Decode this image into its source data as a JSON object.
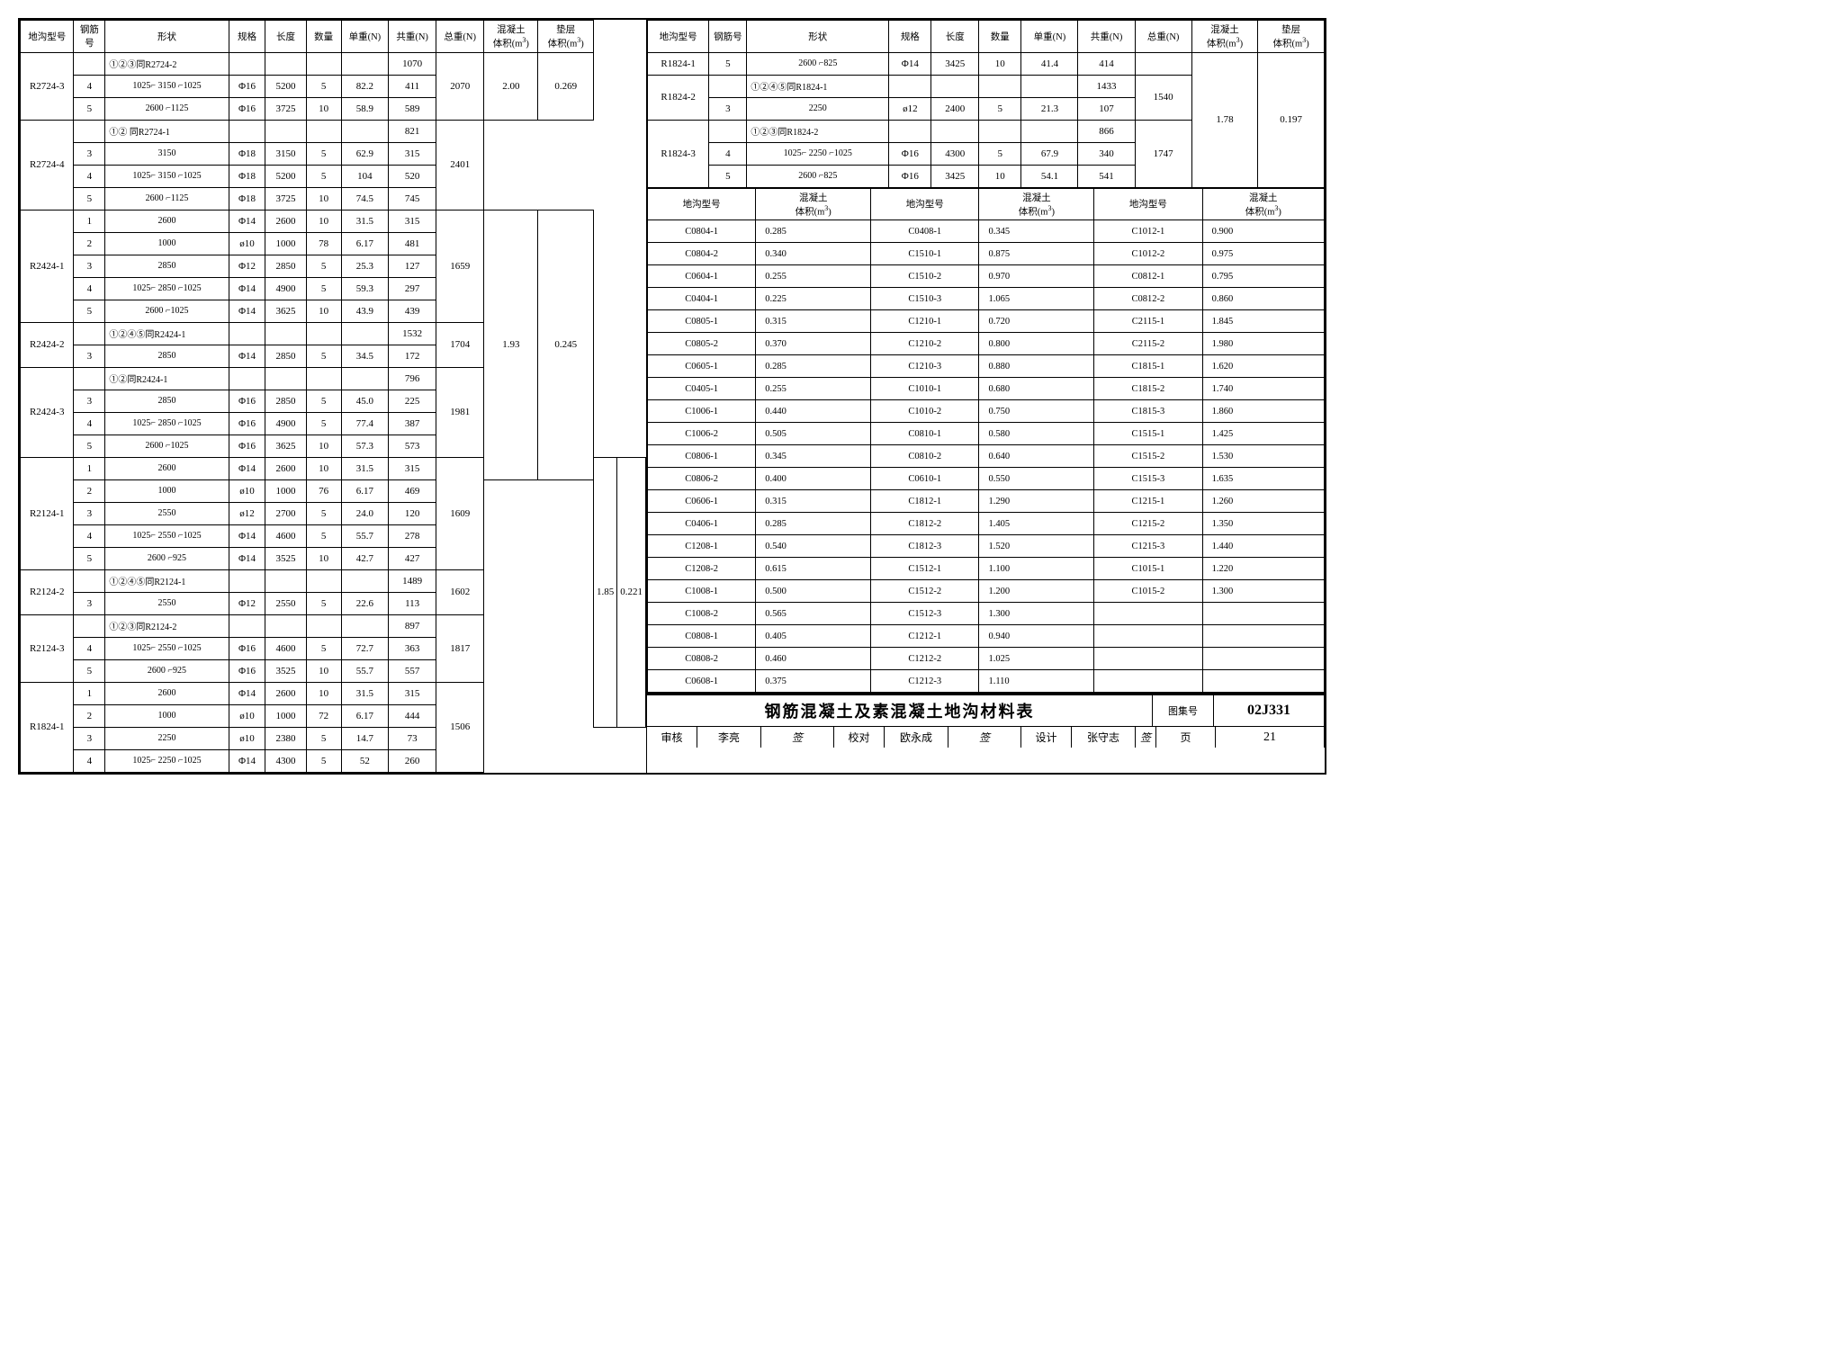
{
  "headers_main": [
    "地沟型号",
    "钢筋号",
    "形状",
    "规格",
    "长度",
    "数量",
    "单重(N)",
    "共重(N)",
    "总重(N)",
    "混凝土 体积(m³)",
    "垫层 体积(m³)"
  ],
  "left_groups": [
    {
      "model": "R2724-3",
      "total": "2070",
      "conc": "2.00",
      "base": "0.269",
      "span": 3,
      "rows": [
        {
          "bar": "",
          "shape": "①②③同R2724-2",
          "spec": "",
          "len": "",
          "qty": "",
          "uw": "",
          "cw": "1070"
        },
        {
          "bar": "4",
          "shape": "1025⌐ 3150 ⌐1025",
          "spec": "Φ16",
          "len": "5200",
          "qty": "5",
          "uw": "82.2",
          "cw": "411"
        },
        {
          "bar": "5",
          "shape": "2600 ⌐1125",
          "spec": "Φ16",
          "len": "3725",
          "qty": "10",
          "uw": "58.9",
          "cw": "589"
        }
      ]
    },
    {
      "model": "R2724-4",
      "total": "2401",
      "rows": [
        {
          "bar": "",
          "shape": "①② 同R2724-1",
          "spec": "",
          "len": "",
          "qty": "",
          "uw": "",
          "cw": "821"
        },
        {
          "bar": "3",
          "shape": "3150",
          "spec": "Φ18",
          "len": "3150",
          "qty": "5",
          "uw": "62.9",
          "cw": "315"
        },
        {
          "bar": "4",
          "shape": "1025⌐ 3150 ⌐1025",
          "spec": "Φ18",
          "len": "5200",
          "qty": "5",
          "uw": "104",
          "cw": "520"
        },
        {
          "bar": "5",
          "shape": "2600 ⌐1125",
          "spec": "Φ18",
          "len": "3725",
          "qty": "10",
          "uw": "74.5",
          "cw": "745"
        }
      ]
    },
    {
      "model": "R2424-1",
      "total": "1659",
      "conc": "1.93",
      "base": "0.245",
      "span": 12,
      "rows": [
        {
          "bar": "1",
          "shape": "2600",
          "spec": "Φ14",
          "len": "2600",
          "qty": "10",
          "uw": "31.5",
          "cw": "315"
        },
        {
          "bar": "2",
          "shape": "1000",
          "spec": "ø10",
          "len": "1000",
          "qty": "78",
          "uw": "6.17",
          "cw": "481"
        },
        {
          "bar": "3",
          "shape": "2850",
          "spec": "Φ12",
          "len": "2850",
          "qty": "5",
          "uw": "25.3",
          "cw": "127"
        },
        {
          "bar": "4",
          "shape": "1025⌐ 2850 ⌐1025",
          "spec": "Φ14",
          "len": "4900",
          "qty": "5",
          "uw": "59.3",
          "cw": "297"
        },
        {
          "bar": "5",
          "shape": "2600 ⌐1025",
          "spec": "Φ14",
          "len": "3625",
          "qty": "10",
          "uw": "43.9",
          "cw": "439"
        }
      ]
    },
    {
      "model": "R2424-2",
      "total": "1704",
      "rows": [
        {
          "bar": "",
          "shape": "①②④⑤同R2424-1",
          "spec": "",
          "len": "",
          "qty": "",
          "uw": "",
          "cw": "1532"
        },
        {
          "bar": "3",
          "shape": "2850",
          "spec": "Φ14",
          "len": "2850",
          "qty": "5",
          "uw": "34.5",
          "cw": "172"
        }
      ]
    },
    {
      "model": "R2424-3",
      "total": "1981",
      "rows": [
        {
          "bar": "",
          "shape": "①②同R2424-1",
          "spec": "",
          "len": "",
          "qty": "",
          "uw": "",
          "cw": "796"
        },
        {
          "bar": "3",
          "shape": "2850",
          "spec": "Φ16",
          "len": "2850",
          "qty": "5",
          "uw": "45.0",
          "cw": "225"
        },
        {
          "bar": "4",
          "shape": "1025⌐ 2850 ⌐1025",
          "spec": "Φ16",
          "len": "4900",
          "qty": "5",
          "uw": "77.4",
          "cw": "387"
        },
        {
          "bar": "5",
          "shape": "2600 ⌐1025",
          "spec": "Φ16",
          "len": "3625",
          "qty": "10",
          "uw": "57.3",
          "cw": "573"
        }
      ]
    },
    {
      "model": "R2124-1",
      "total": "1609",
      "conc": "1.85",
      "base": "0.221",
      "span": 12,
      "rows": [
        {
          "bar": "1",
          "shape": "2600",
          "spec": "Φ14",
          "len": "2600",
          "qty": "10",
          "uw": "31.5",
          "cw": "315"
        },
        {
          "bar": "2",
          "shape": "1000",
          "spec": "ø10",
          "len": "1000",
          "qty": "76",
          "uw": "6.17",
          "cw": "469"
        },
        {
          "bar": "3",
          "shape": "2550",
          "spec": "ø12",
          "len": "2700",
          "qty": "5",
          "uw": "24.0",
          "cw": "120"
        },
        {
          "bar": "4",
          "shape": "1025⌐ 2550 ⌐1025",
          "spec": "Φ14",
          "len": "4600",
          "qty": "5",
          "uw": "55.7",
          "cw": "278"
        },
        {
          "bar": "5",
          "shape": "2600 ⌐925",
          "spec": "Φ14",
          "len": "3525",
          "qty": "10",
          "uw": "42.7",
          "cw": "427"
        }
      ]
    },
    {
      "model": "R2124-2",
      "total": "1602",
      "rows": [
        {
          "bar": "",
          "shape": "①②④⑤同R2124-1",
          "spec": "",
          "len": "",
          "qty": "",
          "uw": "",
          "cw": "1489"
        },
        {
          "bar": "3",
          "shape": "2550",
          "spec": "Φ12",
          "len": "2550",
          "qty": "5",
          "uw": "22.6",
          "cw": "113"
        }
      ]
    },
    {
      "model": "R2124-3",
      "total": "1817",
      "rows": [
        {
          "bar": "",
          "shape": "①②③同R2124-2",
          "spec": "",
          "len": "",
          "qty": "",
          "uw": "",
          "cw": "897"
        },
        {
          "bar": "4",
          "shape": "1025⌐ 2550 ⌐1025",
          "spec": "Φ16",
          "len": "4600",
          "qty": "5",
          "uw": "72.7",
          "cw": "363"
        },
        {
          "bar": "5",
          "shape": "2600 ⌐925",
          "spec": "Φ16",
          "len": "3525",
          "qty": "10",
          "uw": "55.7",
          "cw": "557"
        }
      ]
    },
    {
      "model": "R1824-1",
      "total": "1506",
      "rows": [
        {
          "bar": "1",
          "shape": "2600",
          "spec": "Φ14",
          "len": "2600",
          "qty": "10",
          "uw": "31.5",
          "cw": "315"
        },
        {
          "bar": "2",
          "shape": "1000",
          "spec": "ø10",
          "len": "1000",
          "qty": "72",
          "uw": "6.17",
          "cw": "444"
        },
        {
          "bar": "3",
          "shape": "2250",
          "spec": "ø10",
          "len": "2380",
          "qty": "5",
          "uw": "14.7",
          "cw": "73"
        },
        {
          "bar": "4",
          "shape": "1025⌐ 2250 ⌐1025",
          "spec": "Φ14",
          "len": "4300",
          "qty": "5",
          "uw": "52",
          "cw": "260"
        }
      ]
    }
  ],
  "right_groups": [
    {
      "model": "R1824-1",
      "total": "",
      "conc": "1.78",
      "base": "0.197",
      "span": 6,
      "rows": [
        {
          "bar": "5",
          "shape": "2600 ⌐825",
          "spec": "Φ14",
          "len": "3425",
          "qty": "10",
          "uw": "41.4",
          "cw": "414"
        }
      ]
    },
    {
      "model": "R1824-2",
      "total": "1540",
      "rows": [
        {
          "bar": "",
          "shape": "①②④⑤同R1824-1",
          "spec": "",
          "len": "",
          "qty": "",
          "uw": "",
          "cw": "1433"
        },
        {
          "bar": "3",
          "shape": "2250",
          "spec": "ø12",
          "len": "2400",
          "qty": "5",
          "uw": "21.3",
          "cw": "107"
        }
      ]
    },
    {
      "model": "R1824-3",
      "total": "1747",
      "rows": [
        {
          "bar": "",
          "shape": "①②③同R1824-2",
          "spec": "",
          "len": "",
          "qty": "",
          "uw": "",
          "cw": "866"
        },
        {
          "bar": "4",
          "shape": "1025⌐ 2250 ⌐1025",
          "spec": "Φ16",
          "len": "4300",
          "qty": "5",
          "uw": "67.9",
          "cw": "340"
        },
        {
          "bar": "5",
          "shape": "2600 ⌐825",
          "spec": "Φ16",
          "len": "3425",
          "qty": "10",
          "uw": "54.1",
          "cw": "541"
        }
      ]
    }
  ],
  "vol_headers": [
    "地沟型号",
    "混凝土 体积(m³)",
    "地沟型号",
    "混凝土 体积(m³)",
    "地沟型号",
    "混凝土 体积(m³)"
  ],
  "vol_rows": [
    [
      "C0804-1",
      "0.285",
      "C0408-1",
      "0.345",
      "C1012-1",
      "0.900"
    ],
    [
      "C0804-2",
      "0.340",
      "C1510-1",
      "0.875",
      "C1012-2",
      "0.975"
    ],
    [
      "C0604-1",
      "0.255",
      "C1510-2",
      "0.970",
      "C0812-1",
      "0.795"
    ],
    [
      "C0404-1",
      "0.225",
      "C1510-3",
      "1.065",
      "C0812-2",
      "0.860"
    ],
    [
      "C0805-1",
      "0.315",
      "C1210-1",
      "0.720",
      "C2115-1",
      "1.845"
    ],
    [
      "C0805-2",
      "0.370",
      "C1210-2",
      "0.800",
      "C2115-2",
      "1.980"
    ],
    [
      "C0605-1",
      "0.285",
      "C1210-3",
      "0.880",
      "C1815-1",
      "1.620"
    ],
    [
      "C0405-1",
      "0.255",
      "C1010-1",
      "0.680",
      "C1815-2",
      "1.740"
    ],
    [
      "C1006-1",
      "0.440",
      "C1010-2",
      "0.750",
      "C1815-3",
      "1.860"
    ],
    [
      "C1006-2",
      "0.505",
      "C0810-1",
      "0.580",
      "C1515-1",
      "1.425"
    ],
    [
      "C0806-1",
      "0.345",
      "C0810-2",
      "0.640",
      "C1515-2",
      "1.530"
    ],
    [
      "C0806-2",
      "0.400",
      "C0610-1",
      "0.550",
      "C1515-3",
      "1.635"
    ],
    [
      "C0606-1",
      "0.315",
      "C1812-1",
      "1.290",
      "C1215-1",
      "1.260"
    ],
    [
      "C0406-1",
      "0.285",
      "C1812-2",
      "1.405",
      "C1215-2",
      "1.350"
    ],
    [
      "C1208-1",
      "0.540",
      "C1812-3",
      "1.520",
      "C1215-3",
      "1.440"
    ],
    [
      "C1208-2",
      "0.615",
      "C1512-1",
      "1.100",
      "C1015-1",
      "1.220"
    ],
    [
      "C1008-1",
      "0.500",
      "C1512-2",
      "1.200",
      "C1015-2",
      "1.300"
    ],
    [
      "C1008-2",
      "0.565",
      "C1512-3",
      "1.300",
      "",
      ""
    ],
    [
      "C0808-1",
      "0.405",
      "C1212-1",
      "0.940",
      "",
      ""
    ],
    [
      "C0808-2",
      "0.460",
      "C1212-2",
      "1.025",
      "",
      ""
    ],
    [
      "C0608-1",
      "0.375",
      "C1212-3",
      "1.110",
      "",
      ""
    ]
  ],
  "title": "钢筋混凝土及素混凝土地沟材料表",
  "drawing_no_label": "图集号",
  "drawing_no": "02J331",
  "page_label": "页",
  "page_no": "21",
  "sigs": {
    "check_l": "审核",
    "check_v": "李亮",
    "proof_l": "校对",
    "proof_v": "欧永成",
    "design_l": "设计",
    "design_v": "张守志"
  }
}
